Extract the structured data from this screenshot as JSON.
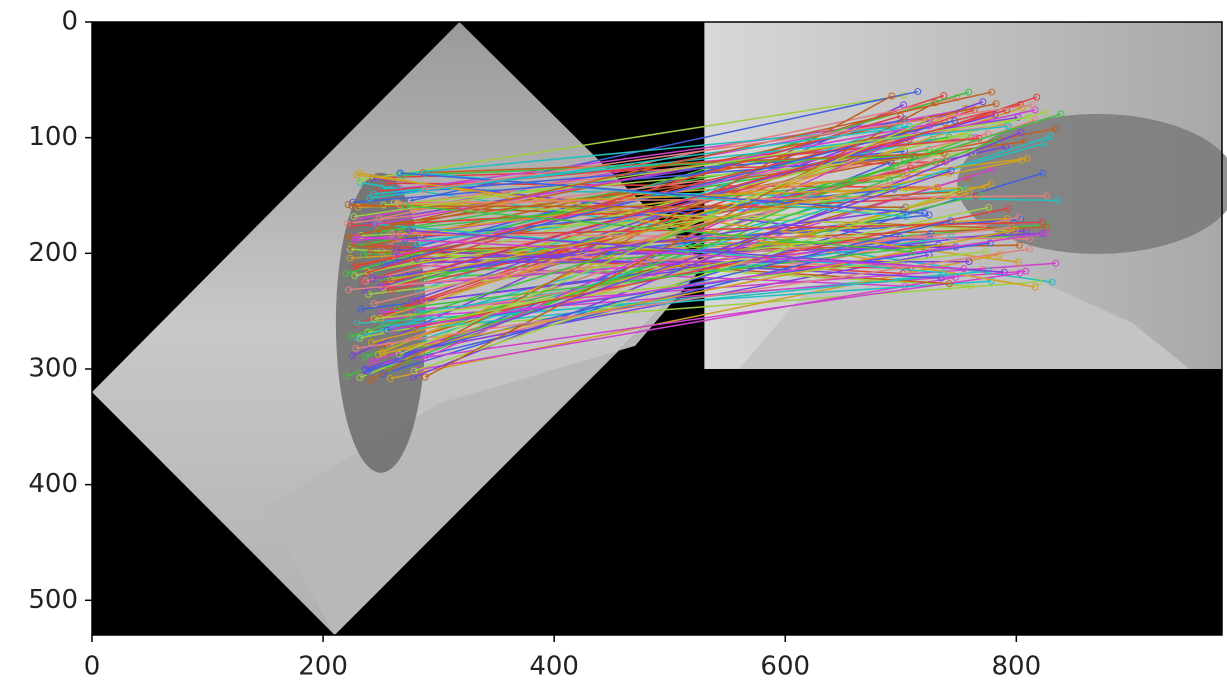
{
  "chart_data": {
    "type": "image",
    "xlim": [
      0,
      978
    ],
    "ylim": [
      530,
      0
    ],
    "xticks": [
      0,
      200,
      400,
      600,
      800
    ],
    "yticks": [
      0,
      100,
      200,
      300,
      400,
      500
    ]
  }
}
